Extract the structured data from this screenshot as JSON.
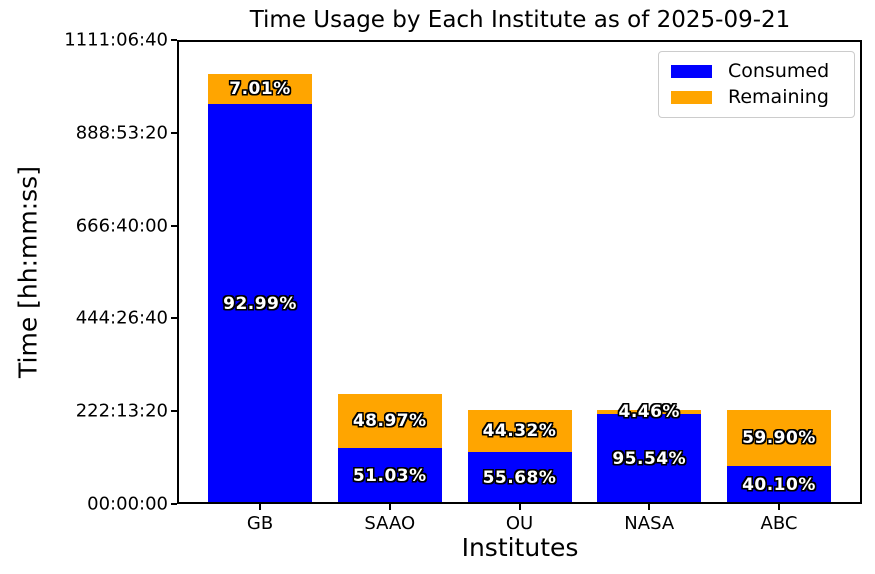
{
  "chart_data": {
    "type": "bar",
    "stacked": true,
    "title": "Time Usage by Each Institute as of 2025-09-21",
    "xlabel": "Institutes",
    "ylabel": "Time [hh:mm:ss]",
    "categories": [
      "GB",
      "SAAO",
      "OU",
      "NASA",
      "ABC"
    ],
    "y_ticks": [
      "00:00:00",
      "222:13:20",
      "444:26:40",
      "666:40:00",
      "888:53:20",
      "1111:06:40"
    ],
    "y_tick_seconds": [
      0,
      800000,
      1600000,
      2400000,
      3200000,
      4000000
    ],
    "ylim_seconds": [
      0,
      4000000
    ],
    "grid": false,
    "colors": {
      "consumed": "#0000ff",
      "remaining": "#ffa500",
      "text": "#000000",
      "legend_border": "#cccccc"
    },
    "legend": {
      "position": "upper right",
      "entries": [
        {
          "label": "Consumed",
          "color": "#0000ff"
        },
        {
          "label": "Remaining",
          "color": "#ffa500"
        }
      ]
    },
    "bars": [
      {
        "category": "GB",
        "total_seconds_est": 3708000,
        "consumed_pct": 92.99,
        "remaining_pct": 7.01,
        "consumed_label": "92.99%",
        "remaining_label": "7.01%"
      },
      {
        "category": "SAAO",
        "total_seconds_est": 950400,
        "consumed_pct": 51.03,
        "remaining_pct": 48.97,
        "consumed_label": "51.03%",
        "remaining_label": "48.97%"
      },
      {
        "category": "OU",
        "total_seconds_est": 810000,
        "consumed_pct": 55.68,
        "remaining_pct": 44.32,
        "consumed_label": "55.68%",
        "remaining_label": "44.32%"
      },
      {
        "category": "NASA",
        "total_seconds_est": 810000,
        "consumed_pct": 95.54,
        "remaining_pct": 4.46,
        "consumed_label": "95.54%",
        "remaining_label": "4.46%"
      },
      {
        "category": "ABC",
        "total_seconds_est": 810000,
        "consumed_pct": 40.1,
        "remaining_pct": 59.9,
        "consumed_label": "40.10%",
        "remaining_label": "59.90%"
      }
    ]
  }
}
